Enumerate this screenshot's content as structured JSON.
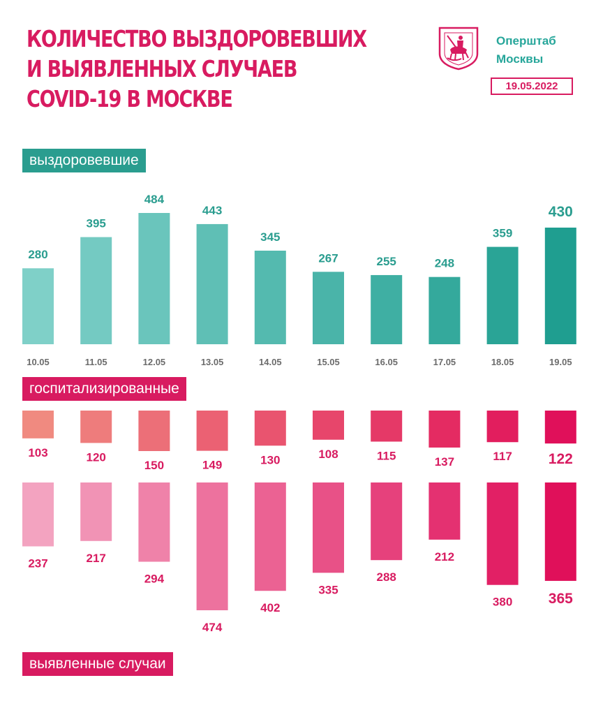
{
  "header": {
    "title_lines": [
      "КОЛИЧЕСТВО ВЫЗДОРОВЕВШИХ",
      "И ВЫЯВЛЕННЫХ СЛУЧАЕВ",
      "COVID-19 В МОСКВЕ"
    ],
    "org_lines": [
      "Оперштаб",
      "Москвы"
    ],
    "date": "19.05.2022",
    "emblem_icon": "moscow-coat-of-arms-icon"
  },
  "labels": {
    "recovered": "выздоровевшие",
    "hospitalized": "госпитализированные",
    "cases": "выявленные случаи"
  },
  "colors": {
    "accent_pink": "#d81b60",
    "accent_teal": "#2a9d8f",
    "recovered_start": "#7fd0c8",
    "recovered_end": "#1f9e90",
    "hosp_start": "#f08a80",
    "hosp_end": "#e0105a",
    "cases_start": "#f3a3c0",
    "cases_end": "#e0105a"
  },
  "chart_data": {
    "type": "bar",
    "categories": [
      "10.05",
      "11.05",
      "12.05",
      "13.05",
      "14.05",
      "15.05",
      "16.05",
      "17.05",
      "18.05",
      "19.05"
    ],
    "series": [
      {
        "name": "выздоровевшие",
        "values": [
          280,
          395,
          484,
          443,
          345,
          267,
          255,
          248,
          359,
          430
        ]
      },
      {
        "name": "госпитализированные",
        "values": [
          103,
          120,
          150,
          149,
          130,
          108,
          115,
          137,
          117,
          122
        ]
      },
      {
        "name": "выявленные случаи",
        "values": [
          237,
          217,
          294,
          474,
          402,
          335,
          288,
          212,
          380,
          365
        ]
      }
    ]
  }
}
